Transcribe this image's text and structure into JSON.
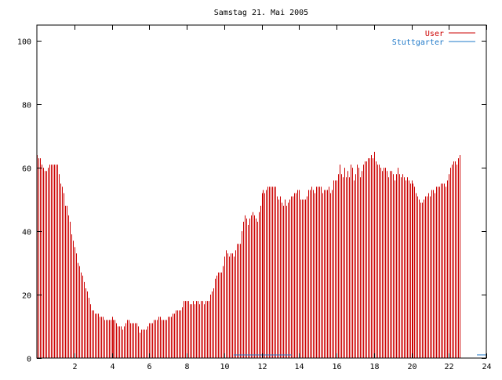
{
  "chart_data": {
    "type": "bar",
    "title": "Samstag 21. Mai 2005",
    "xlabel": "",
    "ylabel": "",
    "xlim": [
      0,
      24
    ],
    "ylim": [
      0,
      105
    ],
    "xticks": [
      "2",
      "4",
      "6",
      "8",
      "10",
      "12",
      "14",
      "16",
      "18",
      "20",
      "22",
      "24"
    ],
    "yticks": [
      "0",
      "20",
      "40",
      "60",
      "80",
      "100"
    ],
    "grid": false,
    "legend_position": "top-right",
    "series": [
      {
        "name": "User",
        "color": "#cc0000",
        "step_minutes": 5,
        "values": [
          64,
          63,
          63,
          61,
          60,
          59,
          59,
          60,
          61,
          61,
          61,
          61,
          61,
          61,
          58,
          55,
          54,
          52,
          48,
          48,
          45,
          43,
          39,
          37,
          35,
          33,
          30,
          29,
          27,
          26,
          24,
          22,
          21,
          19,
          17,
          15,
          15,
          14,
          14,
          14,
          13,
          13,
          13,
          12,
          12,
          12,
          12,
          12,
          13,
          12,
          12,
          11,
          10,
          10,
          10,
          9,
          10,
          11,
          12,
          12,
          11,
          11,
          11,
          11,
          11,
          10,
          8,
          9,
          9,
          9,
          9,
          10,
          11,
          11,
          11,
          12,
          12,
          12,
          13,
          13,
          12,
          12,
          12,
          12,
          13,
          13,
          13,
          14,
          14,
          15,
          15,
          15,
          15,
          16,
          18,
          18,
          18,
          18,
          17,
          17,
          18,
          17,
          18,
          18,
          17,
          18,
          18,
          17,
          18,
          18,
          18,
          20,
          21,
          22,
          25,
          26,
          27,
          27,
          27,
          29,
          32,
          34,
          33,
          32,
          33,
          33,
          32,
          34,
          36,
          36,
          36,
          40,
          43,
          45,
          44,
          42,
          44,
          45,
          46,
          45,
          44,
          43,
          46,
          48,
          52,
          53,
          52,
          53,
          54,
          54,
          54,
          54,
          54,
          54,
          51,
          50,
          51,
          49,
          48,
          50,
          48,
          49,
          50,
          51,
          51,
          52,
          52,
          53,
          53,
          50,
          50,
          50,
          50,
          51,
          53,
          53,
          54,
          53,
          52,
          54,
          54,
          54,
          54,
          52,
          53,
          53,
          53,
          54,
          52,
          53,
          56,
          56,
          56,
          58,
          61,
          58,
          57,
          60,
          57,
          59,
          57,
          61,
          60,
          56,
          58,
          61,
          60,
          57,
          59,
          61,
          62,
          62,
          63,
          63,
          64,
          63,
          65,
          62,
          61,
          61,
          60,
          59,
          60,
          60,
          59,
          57,
          59,
          59,
          58,
          56,
          58,
          60,
          58,
          57,
          58,
          57,
          56,
          57,
          56,
          55,
          56,
          55,
          54,
          52,
          51,
          50,
          49,
          49,
          50,
          51,
          51,
          52,
          51,
          53,
          53,
          52,
          54,
          54,
          54,
          55,
          55,
          55,
          54,
          56,
          58,
          60,
          61,
          62,
          62,
          61,
          63,
          64
        ]
      },
      {
        "name": "Stuttgarter",
        "color": "#1e78c8",
        "step_minutes": 5,
        "segments": [
          {
            "from": 10.5,
            "to": 13.6,
            "value": 1
          },
          {
            "from": 23.5,
            "to": 24,
            "value": 1
          }
        ]
      }
    ]
  }
}
